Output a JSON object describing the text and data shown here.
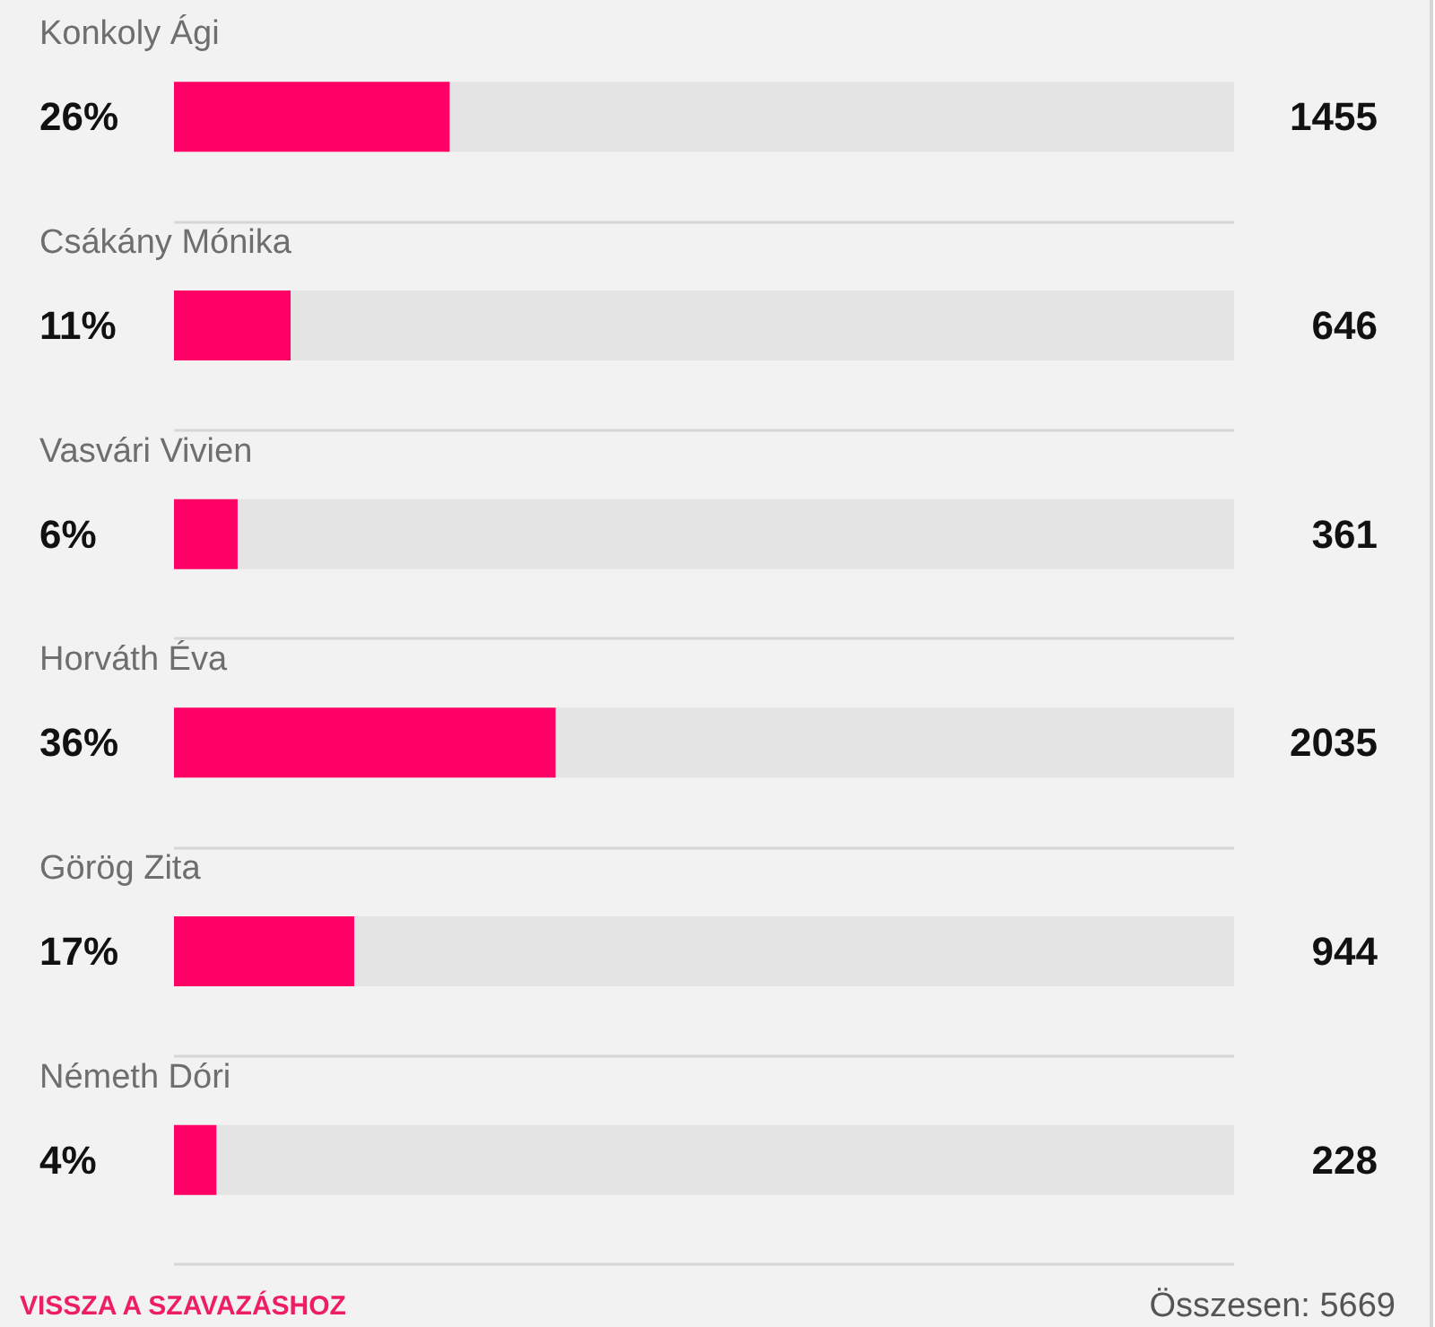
{
  "chart_data": {
    "type": "bar",
    "orientation": "horizontal",
    "categories": [
      "Konkoly Ági",
      "Csákány Mónika",
      "Vasvári Vivien",
      "Horváth Éva",
      "Görög Zita",
      "Németh Dóri"
    ],
    "values": [
      26,
      11,
      6,
      36,
      17,
      4
    ],
    "value_labels": [
      "26%",
      "11%",
      "6%",
      "36%",
      "17%",
      "4%"
    ],
    "color": "#ff0066",
    "xlim": [
      0,
      100
    ],
    "tick_labels": "y",
    "grid": "y",
    "annotations": [
      "1455",
      "646",
      "361",
      "2035",
      "944",
      "228",
      "VISSZA A SZAVAZÁSHOZ",
      "Összesen: 5669"
    ]
  }
}
